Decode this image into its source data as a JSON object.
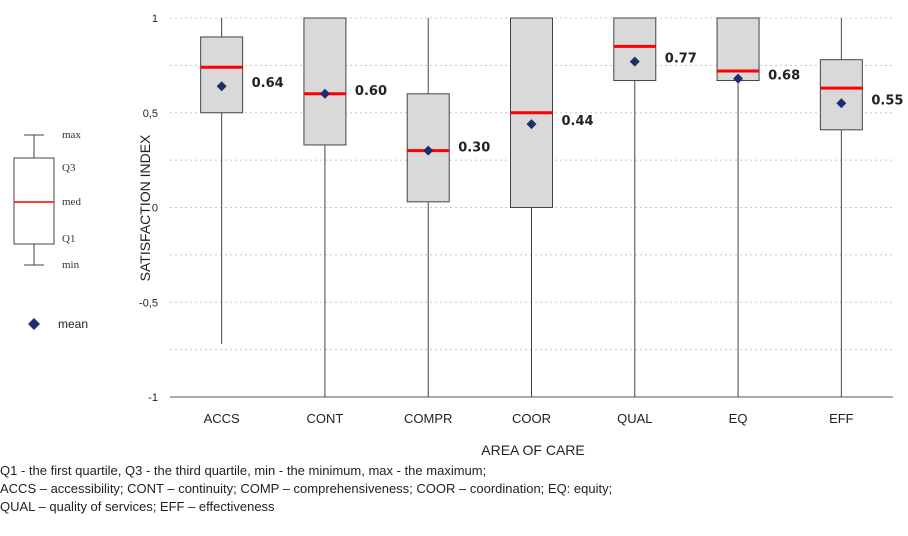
{
  "chart_data": {
    "type": "box",
    "ylabel": "SATISFACTION INDEX",
    "xlabel": "AREA OF CARE",
    "ylim": [
      -1,
      1
    ],
    "yticks": [
      {
        "value": 1,
        "label": "1"
      },
      {
        "value": 0.5,
        "label": "0,5"
      },
      {
        "value": 0,
        "label": "0"
      },
      {
        "value": -0.5,
        "label": "-0,5"
      },
      {
        "value": -1,
        "label": "-1"
      }
    ],
    "grid": true,
    "categories": [
      "ACCS",
      "CONT",
      "COMPR",
      "COOR",
      "QUAL",
      "EQ",
      "EFF"
    ],
    "boxes": [
      {
        "category": "ACCS",
        "min": -0.72,
        "q1": 0.5,
        "median": 0.74,
        "q3": 0.9,
        "max": 1,
        "mean": 0.64,
        "mean_label": "0.64"
      },
      {
        "category": "CONT",
        "min": -1,
        "q1": 0.33,
        "median": 0.6,
        "q3": 1,
        "max": 1,
        "mean": 0.6,
        "mean_label": "0.60"
      },
      {
        "category": "COMPR",
        "min": -1,
        "q1": 0.03,
        "median": 0.3,
        "q3": 0.6,
        "max": 1,
        "mean": 0.3,
        "mean_label": "0.30"
      },
      {
        "category": "COOR",
        "min": -1,
        "q1": 0,
        "median": 0.5,
        "q3": 1,
        "max": 1,
        "mean": 0.44,
        "mean_label": "0.44"
      },
      {
        "category": "QUAL",
        "min": -1,
        "q1": 0.67,
        "median": 0.85,
        "q3": 1,
        "max": 1,
        "mean": 0.77,
        "mean_label": "0.77"
      },
      {
        "category": "EQ",
        "min": -1,
        "q1": 0.67,
        "median": 0.72,
        "q3": 1,
        "max": 1,
        "mean": 0.68,
        "mean_label": "0.68"
      },
      {
        "category": "EFF",
        "min": -1,
        "q1": 0.41,
        "median": 0.63,
        "q3": 0.78,
        "max": 1,
        "mean": 0.55,
        "mean_label": "0.55"
      }
    ],
    "legend": {
      "placement": "left",
      "labels": {
        "max": "max",
        "q3": "Q3",
        "med": "med",
        "q1": "Q1",
        "min": "min",
        "mean": "mean"
      }
    },
    "colors": {
      "box_fill": "#d9d9d9",
      "box_stroke": "#444444",
      "median": "#ff0000",
      "mean": "#1f2d6b",
      "grid": "#c8c8c8"
    }
  },
  "notes": [
    "Q1 - the first quartile, Q3 - the third quartile, min - the minimum, max - the maximum;",
    "ACCS –  accessibility; CONT – continuity; COMP – comprehensiveness; COOR – coordination; EQ: equity;",
    "QUAL – quality of services; EFF – effectiveness"
  ]
}
